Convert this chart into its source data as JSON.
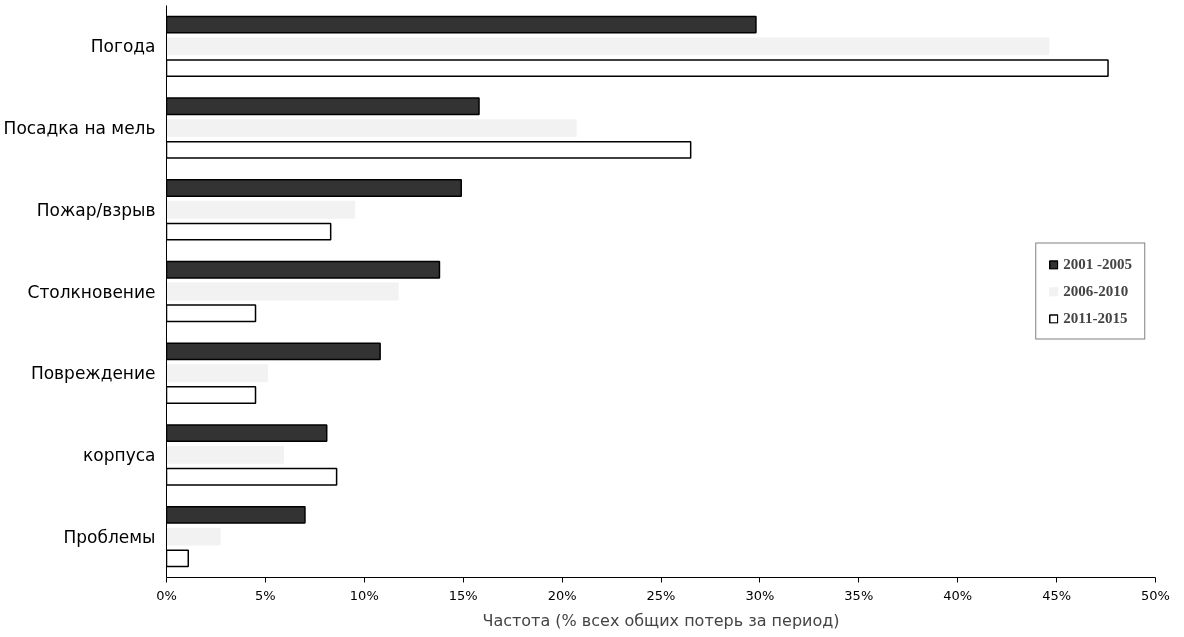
{
  "chart_data": {
    "type": "bar",
    "orientation": "horizontal",
    "xlabel": "Частота (% всех общих потерь за период)",
    "categories": [
      "Погода",
      "Посадка на мель",
      "Пожар/взрыв",
      "Столкновение",
      "Повреждение",
      "корпуса",
      "Проблемы"
    ],
    "series": [
      {
        "name": "2001 -2005",
        "color": "#333333",
        "values": [
          29.8,
          15.8,
          14.9,
          13.8,
          10.8,
          8.1,
          7.0
        ]
      },
      {
        "name": "2006-2010",
        "color": "#f2f2f2",
        "values": [
          44.6,
          20.7,
          9.5,
          11.7,
          5.1,
          5.9,
          2.7
        ]
      },
      {
        "name": "2011-2015",
        "color": "#ffffff",
        "values": [
          47.6,
          26.5,
          8.3,
          4.5,
          4.5,
          8.6,
          1.1
        ]
      }
    ],
    "xlim": [
      0,
      50
    ],
    "xticks": [
      {
        "value": 0,
        "label": "0%"
      },
      {
        "value": 5,
        "label": "5%"
      },
      {
        "value": 10,
        "label": "10%"
      },
      {
        "value": 15,
        "label": "15%"
      },
      {
        "value": 20,
        "label": "20%"
      },
      {
        "value": 25,
        "label": "25%"
      },
      {
        "value": 30,
        "label": "30%"
      },
      {
        "value": 35,
        "label": "35%"
      },
      {
        "value": 40,
        "label": "40%"
      },
      {
        "value": 45,
        "label": "45%"
      },
      {
        "value": 50,
        "label": "50%"
      }
    ],
    "grid": false,
    "legend": "right"
  }
}
